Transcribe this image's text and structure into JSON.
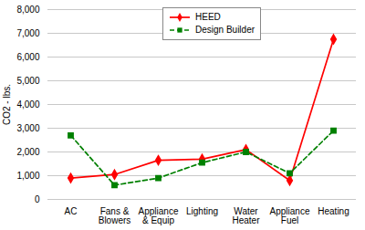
{
  "chart_data": {
    "type": "line",
    "categories": [
      "AC",
      "Fans &\nBlowers",
      "Appliance\n& Equip",
      "Lighting",
      "Water\nHeater",
      "Appliance\nFuel",
      "Heating"
    ],
    "series": [
      {
        "name": "HEED",
        "color": "#ff0000",
        "marker": "diamond",
        "line_style": "solid",
        "values": [
          900,
          1050,
          1650,
          1700,
          2100,
          800,
          6750
        ]
      },
      {
        "name": "Design Builder",
        "color": "#008000",
        "marker": "square",
        "line_style": "dashed",
        "values": [
          2700,
          600,
          900,
          1550,
          2000,
          1100,
          2900
        ]
      }
    ],
    "ylabel": "CO2 - lbs.",
    "ylim": [
      0,
      8000
    ],
    "yticks": [
      0,
      {
        "value": 1000,
        "label": "1,000"
      },
      {
        "value": 2000,
        "label": "2,000"
      },
      {
        "value": 3000,
        "label": "3,000"
      },
      {
        "value": 4000,
        "label": "4,000"
      },
      {
        "value": 5000,
        "label": "5,000"
      },
      {
        "value": 6000,
        "label": "6,000"
      },
      {
        "value": 7000,
        "label": "7,000"
      },
      {
        "value": 8000,
        "label": "8,000"
      }
    ],
    "grid": true,
    "legend": "upper center"
  }
}
